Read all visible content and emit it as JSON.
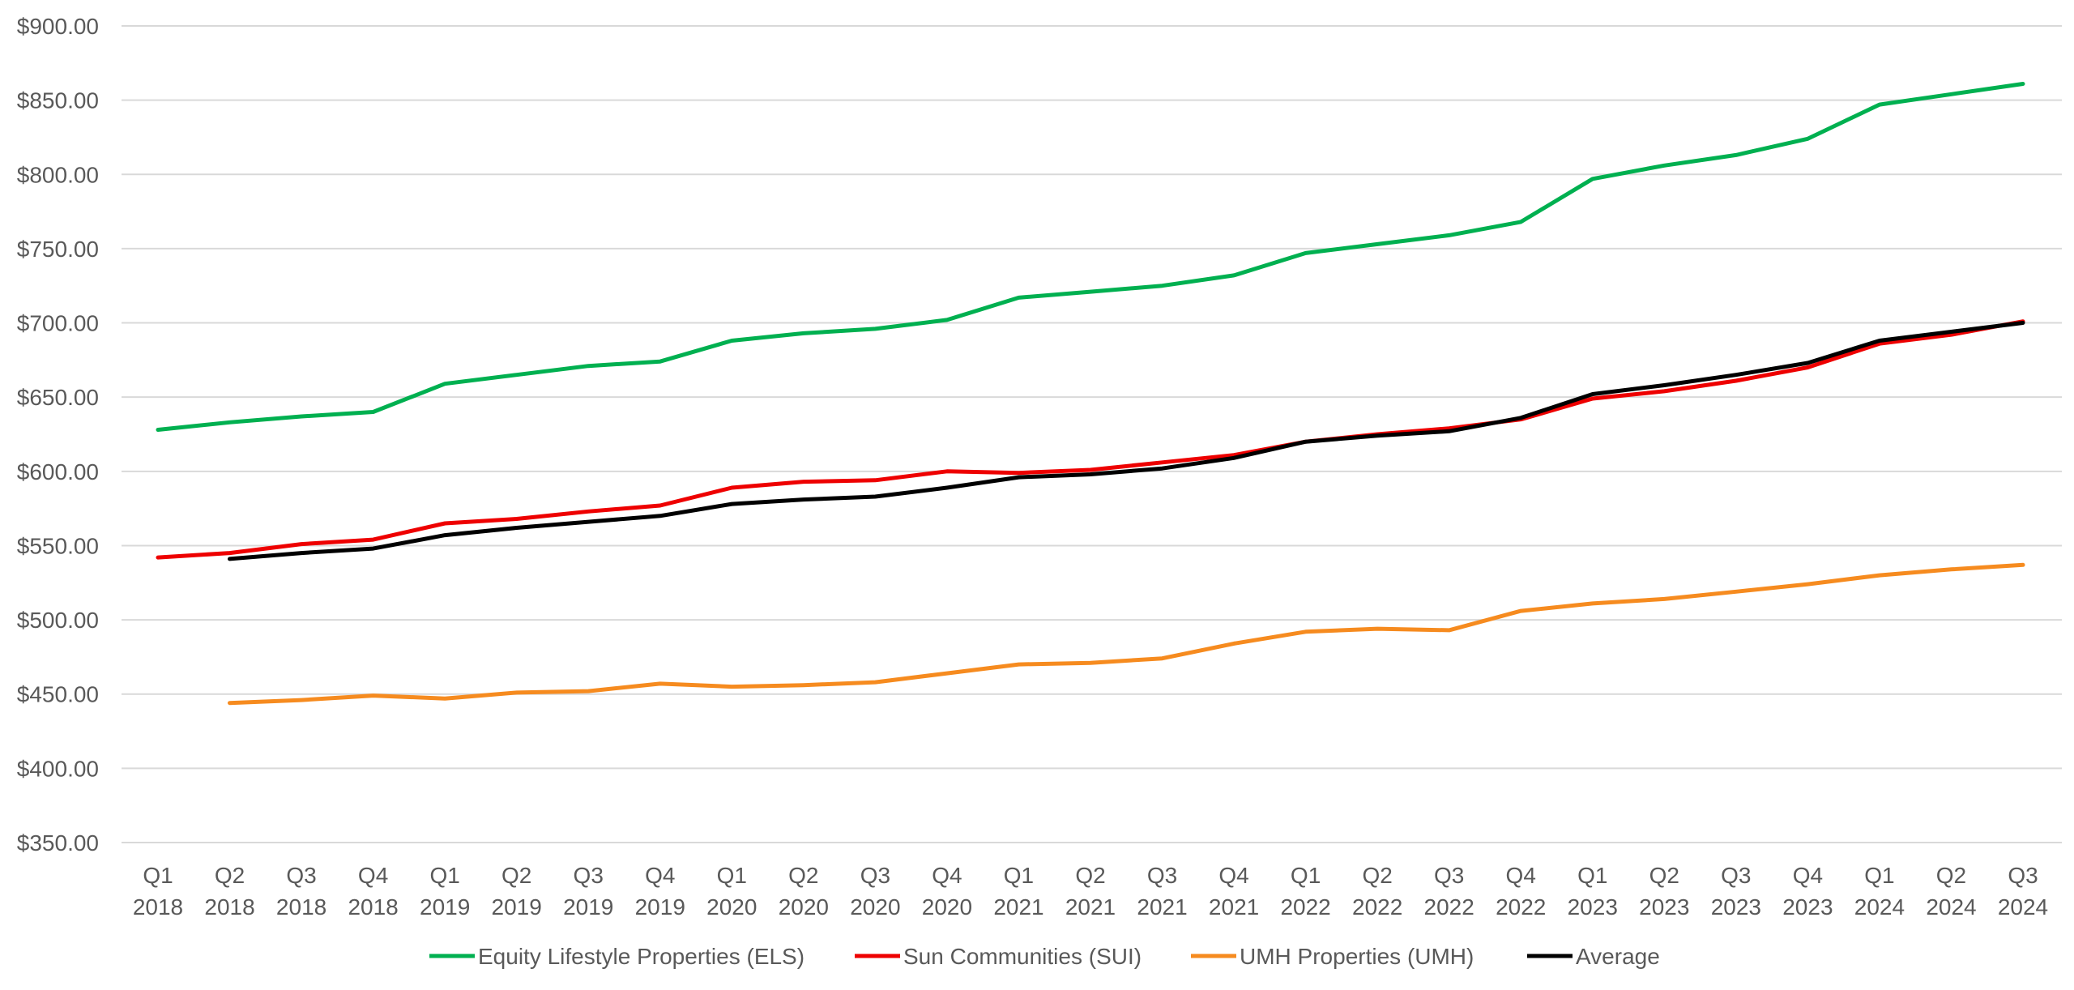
{
  "chart_data": {
    "type": "line",
    "title": "",
    "xlabel": "",
    "ylabel": "",
    "ylim": [
      350,
      900
    ],
    "y_ticks": [
      350,
      400,
      450,
      500,
      550,
      600,
      650,
      700,
      750,
      800,
      850,
      900
    ],
    "y_tick_labels": [
      "$350.00",
      "$400.00",
      "$450.00",
      "$500.00",
      "$550.00",
      "$600.00",
      "$650.00",
      "$700.00",
      "$750.00",
      "$800.00",
      "$850.00",
      "$900.00"
    ],
    "grid": true,
    "legend_position": "bottom",
    "categories": [
      {
        "quarter": "Q1",
        "year": "2018"
      },
      {
        "quarter": "Q2",
        "year": "2018"
      },
      {
        "quarter": "Q3",
        "year": "2018"
      },
      {
        "quarter": "Q4",
        "year": "2018"
      },
      {
        "quarter": "Q1",
        "year": "2019"
      },
      {
        "quarter": "Q2",
        "year": "2019"
      },
      {
        "quarter": "Q3",
        "year": "2019"
      },
      {
        "quarter": "Q4",
        "year": "2019"
      },
      {
        "quarter": "Q1",
        "year": "2020"
      },
      {
        "quarter": "Q2",
        "year": "2020"
      },
      {
        "quarter": "Q3",
        "year": "2020"
      },
      {
        "quarter": "Q4",
        "year": "2020"
      },
      {
        "quarter": "Q1",
        "year": "2021"
      },
      {
        "quarter": "Q2",
        "year": "2021"
      },
      {
        "quarter": "Q3",
        "year": "2021"
      },
      {
        "quarter": "Q4",
        "year": "2021"
      },
      {
        "quarter": "Q1",
        "year": "2022"
      },
      {
        "quarter": "Q2",
        "year": "2022"
      },
      {
        "quarter": "Q3",
        "year": "2022"
      },
      {
        "quarter": "Q4",
        "year": "2022"
      },
      {
        "quarter": "Q1",
        "year": "2023"
      },
      {
        "quarter": "Q2",
        "year": "2023"
      },
      {
        "quarter": "Q3",
        "year": "2023"
      },
      {
        "quarter": "Q4",
        "year": "2023"
      },
      {
        "quarter": "Q1",
        "year": "2024"
      },
      {
        "quarter": "Q2",
        "year": "2024"
      },
      {
        "quarter": "Q3",
        "year": "2024"
      }
    ],
    "series": [
      {
        "name": "Equity Lifestyle Properties (ELS)",
        "color": "#00b050",
        "values": [
          628,
          633,
          637,
          640,
          659,
          665,
          671,
          674,
          688,
          693,
          696,
          702,
          717,
          721,
          725,
          732,
          747,
          753,
          759,
          768,
          797,
          806,
          813,
          824,
          847,
          854,
          861
        ]
      },
      {
        "name": "Sun Communities (SUI)",
        "color": "#ee0000",
        "values": [
          542,
          545,
          551,
          554,
          565,
          568,
          573,
          577,
          589,
          593,
          594,
          600,
          599,
          601,
          606,
          611,
          620,
          625,
          629,
          635,
          649,
          654,
          661,
          670,
          686,
          692,
          701
        ]
      },
      {
        "name": "UMH Properties (UMH)",
        "color": "#f68b1f",
        "values": [
          null,
          444,
          446,
          449,
          447,
          451,
          452,
          457,
          455,
          456,
          458,
          464,
          470,
          471,
          474,
          484,
          492,
          494,
          493,
          506,
          511,
          514,
          519,
          524,
          530,
          534,
          537
        ]
      },
      {
        "name": "Average",
        "color": "#000000",
        "values": [
          null,
          541,
          545,
          548,
          557,
          562,
          566,
          570,
          578,
          581,
          583,
          589,
          596,
          598,
          602,
          609,
          620,
          624,
          627,
          636,
          652,
          658,
          665,
          673,
          688,
          694,
          700
        ]
      }
    ]
  }
}
